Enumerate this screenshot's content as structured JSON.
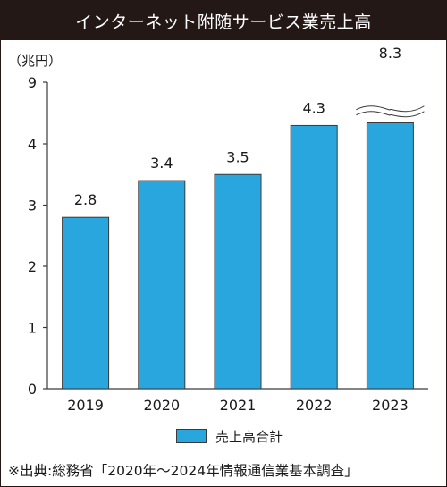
{
  "title": "インターネット附随サービス業売上高",
  "source": "※出典:総務省「2020年〜2024年情報通信業基本調査」",
  "colors": {
    "bar": "#2aa6de",
    "title_bg": "#231815",
    "axis": "#3a3a3a"
  },
  "chart_data": {
    "type": "bar",
    "title": "インターネット附随サービス業売上高",
    "ylabel": "（兆円）",
    "xlabel": "",
    "categories": [
      "2019",
      "2020",
      "2021",
      "2022",
      "2023"
    ],
    "series": [
      {
        "name": "売上高合計",
        "values": [
          2.8,
          3.4,
          3.5,
          4.3,
          8.3
        ]
      }
    ],
    "data_labels": [
      "2.8",
      "3.4",
      "3.5",
      "4.3",
      "8.3"
    ],
    "y_ticks": [
      0,
      1,
      2,
      3,
      4,
      9
    ],
    "ylim": [
      0,
      9
    ],
    "axis_break": {
      "from": 4.5,
      "to": 8.2,
      "category": "2023"
    },
    "grid": false,
    "legend_position": "bottom"
  }
}
